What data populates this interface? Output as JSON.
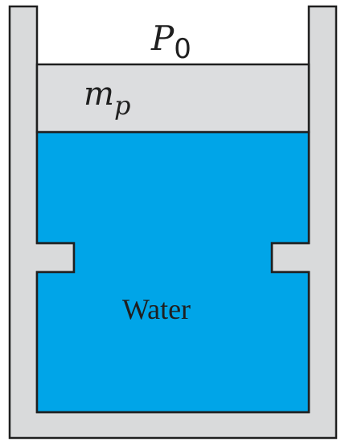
{
  "labels": {
    "pressure_symbol": "P",
    "pressure_subscript": "0",
    "piston_symbol": "m",
    "piston_subscript": "p",
    "fluid": "Water"
  },
  "colors": {
    "cylinder_wall": "#d9dadb",
    "piston": "#dcdddf",
    "water": "#00a5e8",
    "outline": "#1f1f1f",
    "background": "#ffffff"
  }
}
